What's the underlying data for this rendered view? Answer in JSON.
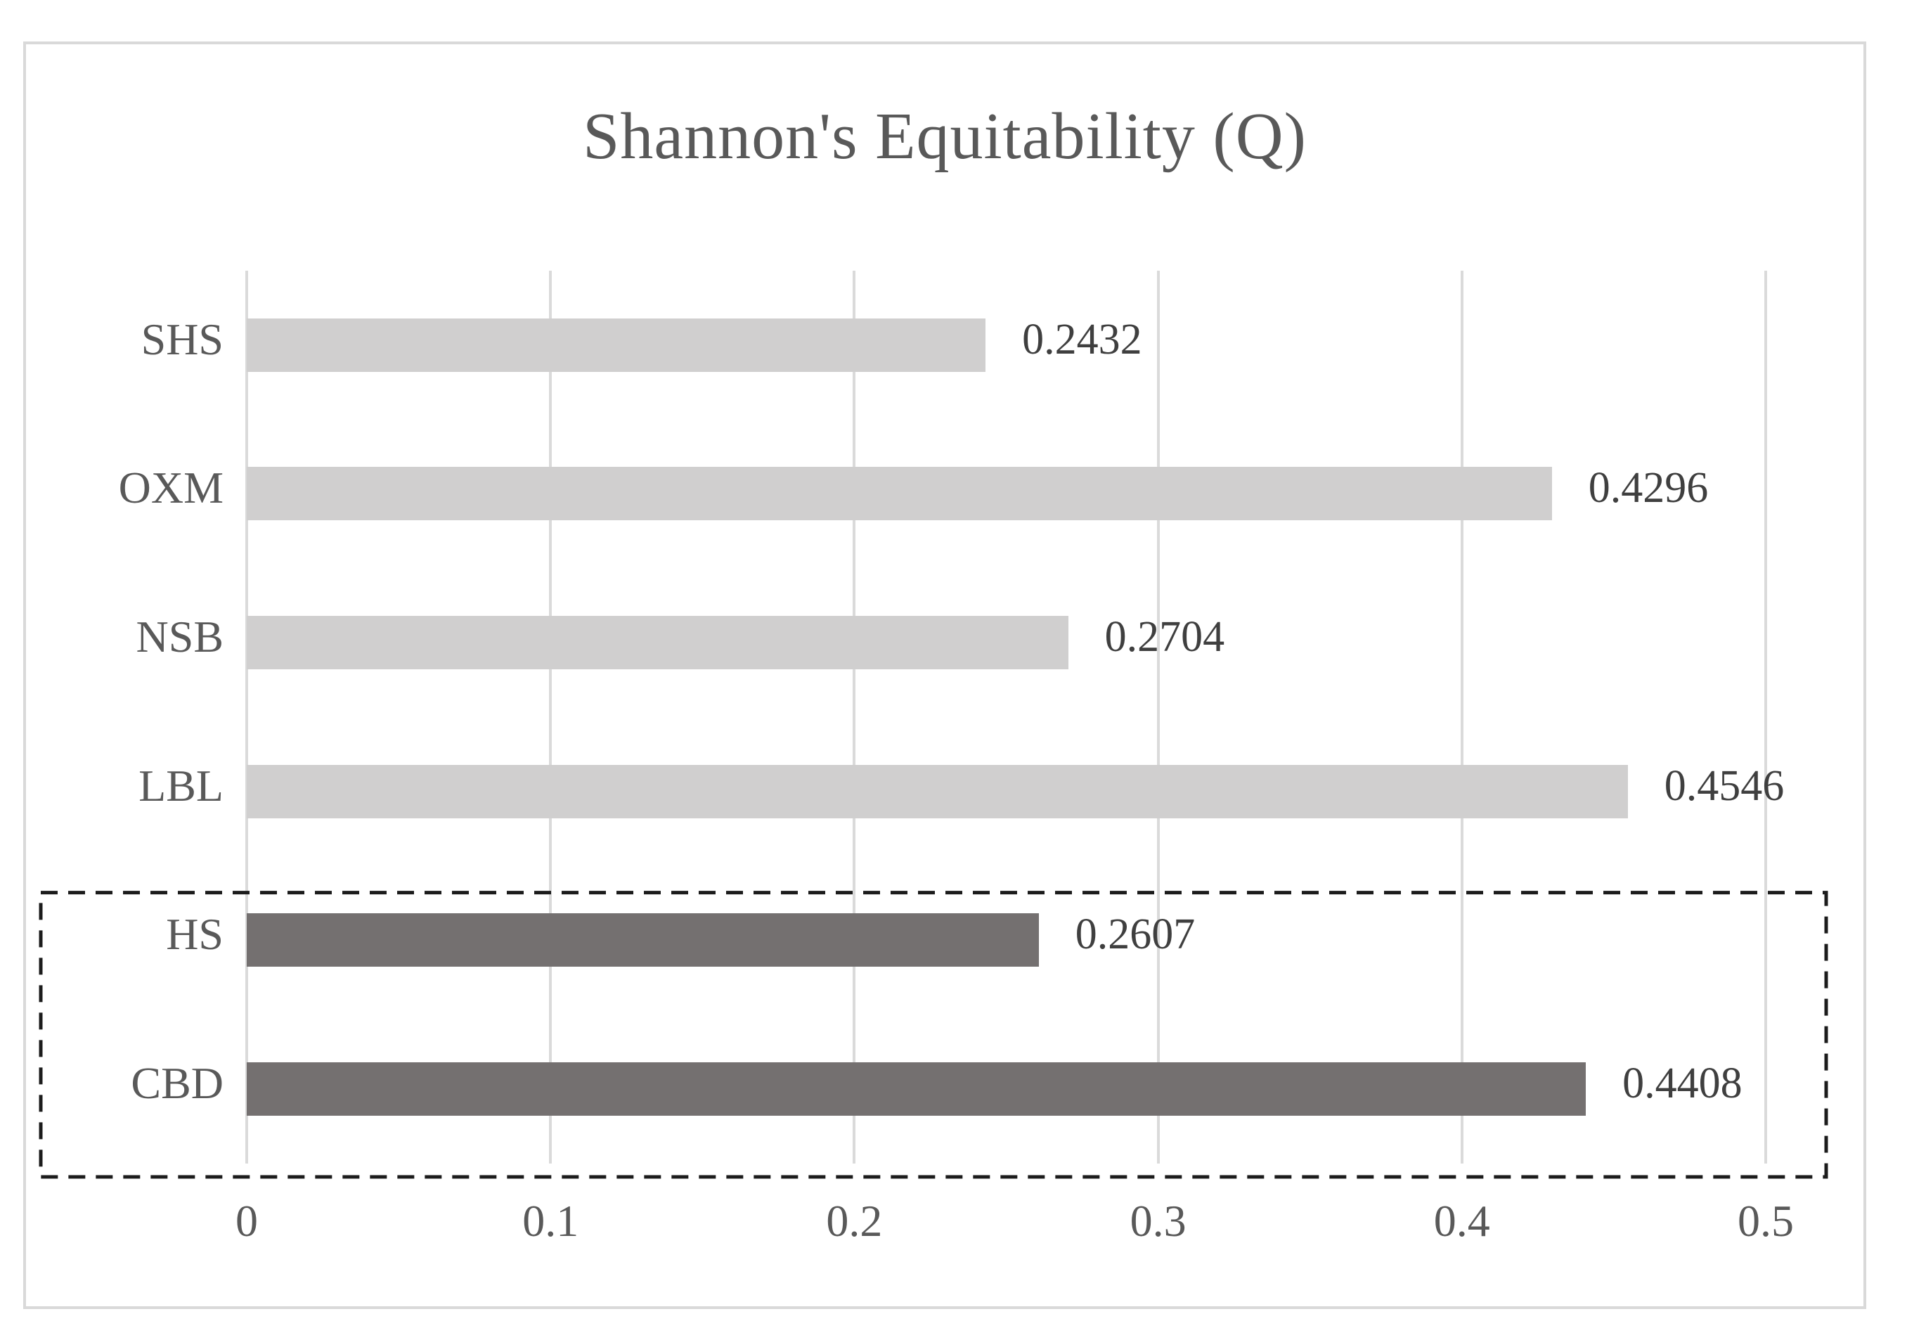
{
  "chart_data": {
    "type": "bar",
    "orientation": "horizontal",
    "title": "Shannon's Equitability (Q)",
    "categories": [
      "SHS",
      "OXM",
      "NSB",
      "LBL",
      "HS",
      "CBD"
    ],
    "values": [
      0.2432,
      0.4296,
      0.2704,
      0.4546,
      0.2607,
      0.4408
    ],
    "data_labels": [
      "0.2432",
      "0.4296",
      "0.2704",
      "0.4546",
      "0.2607",
      "0.4408"
    ],
    "highlighted_categories": [
      "HS",
      "CBD"
    ],
    "xlim": [
      0,
      0.5
    ],
    "x_ticks": [
      "0",
      "0.1",
      "0.2",
      "0.3",
      "0.4",
      "0.5"
    ],
    "x_tick_values": [
      0,
      0.1,
      0.2,
      0.3,
      0.4,
      0.5
    ],
    "grid": "vertical",
    "legend": "none",
    "annotation": "dashed rectangle around HS and CBD rows",
    "colors": {
      "bar_default": "#d0cfcf",
      "bar_highlight": "#747070",
      "gridline": "#dadada",
      "figure_border": "#d9d9d9",
      "title_text": "#595959",
      "axis_text": "#595959",
      "value_text": "#3f3f3f",
      "highlight_box_border": "#1c1c1c",
      "background": "#ffffff"
    }
  }
}
